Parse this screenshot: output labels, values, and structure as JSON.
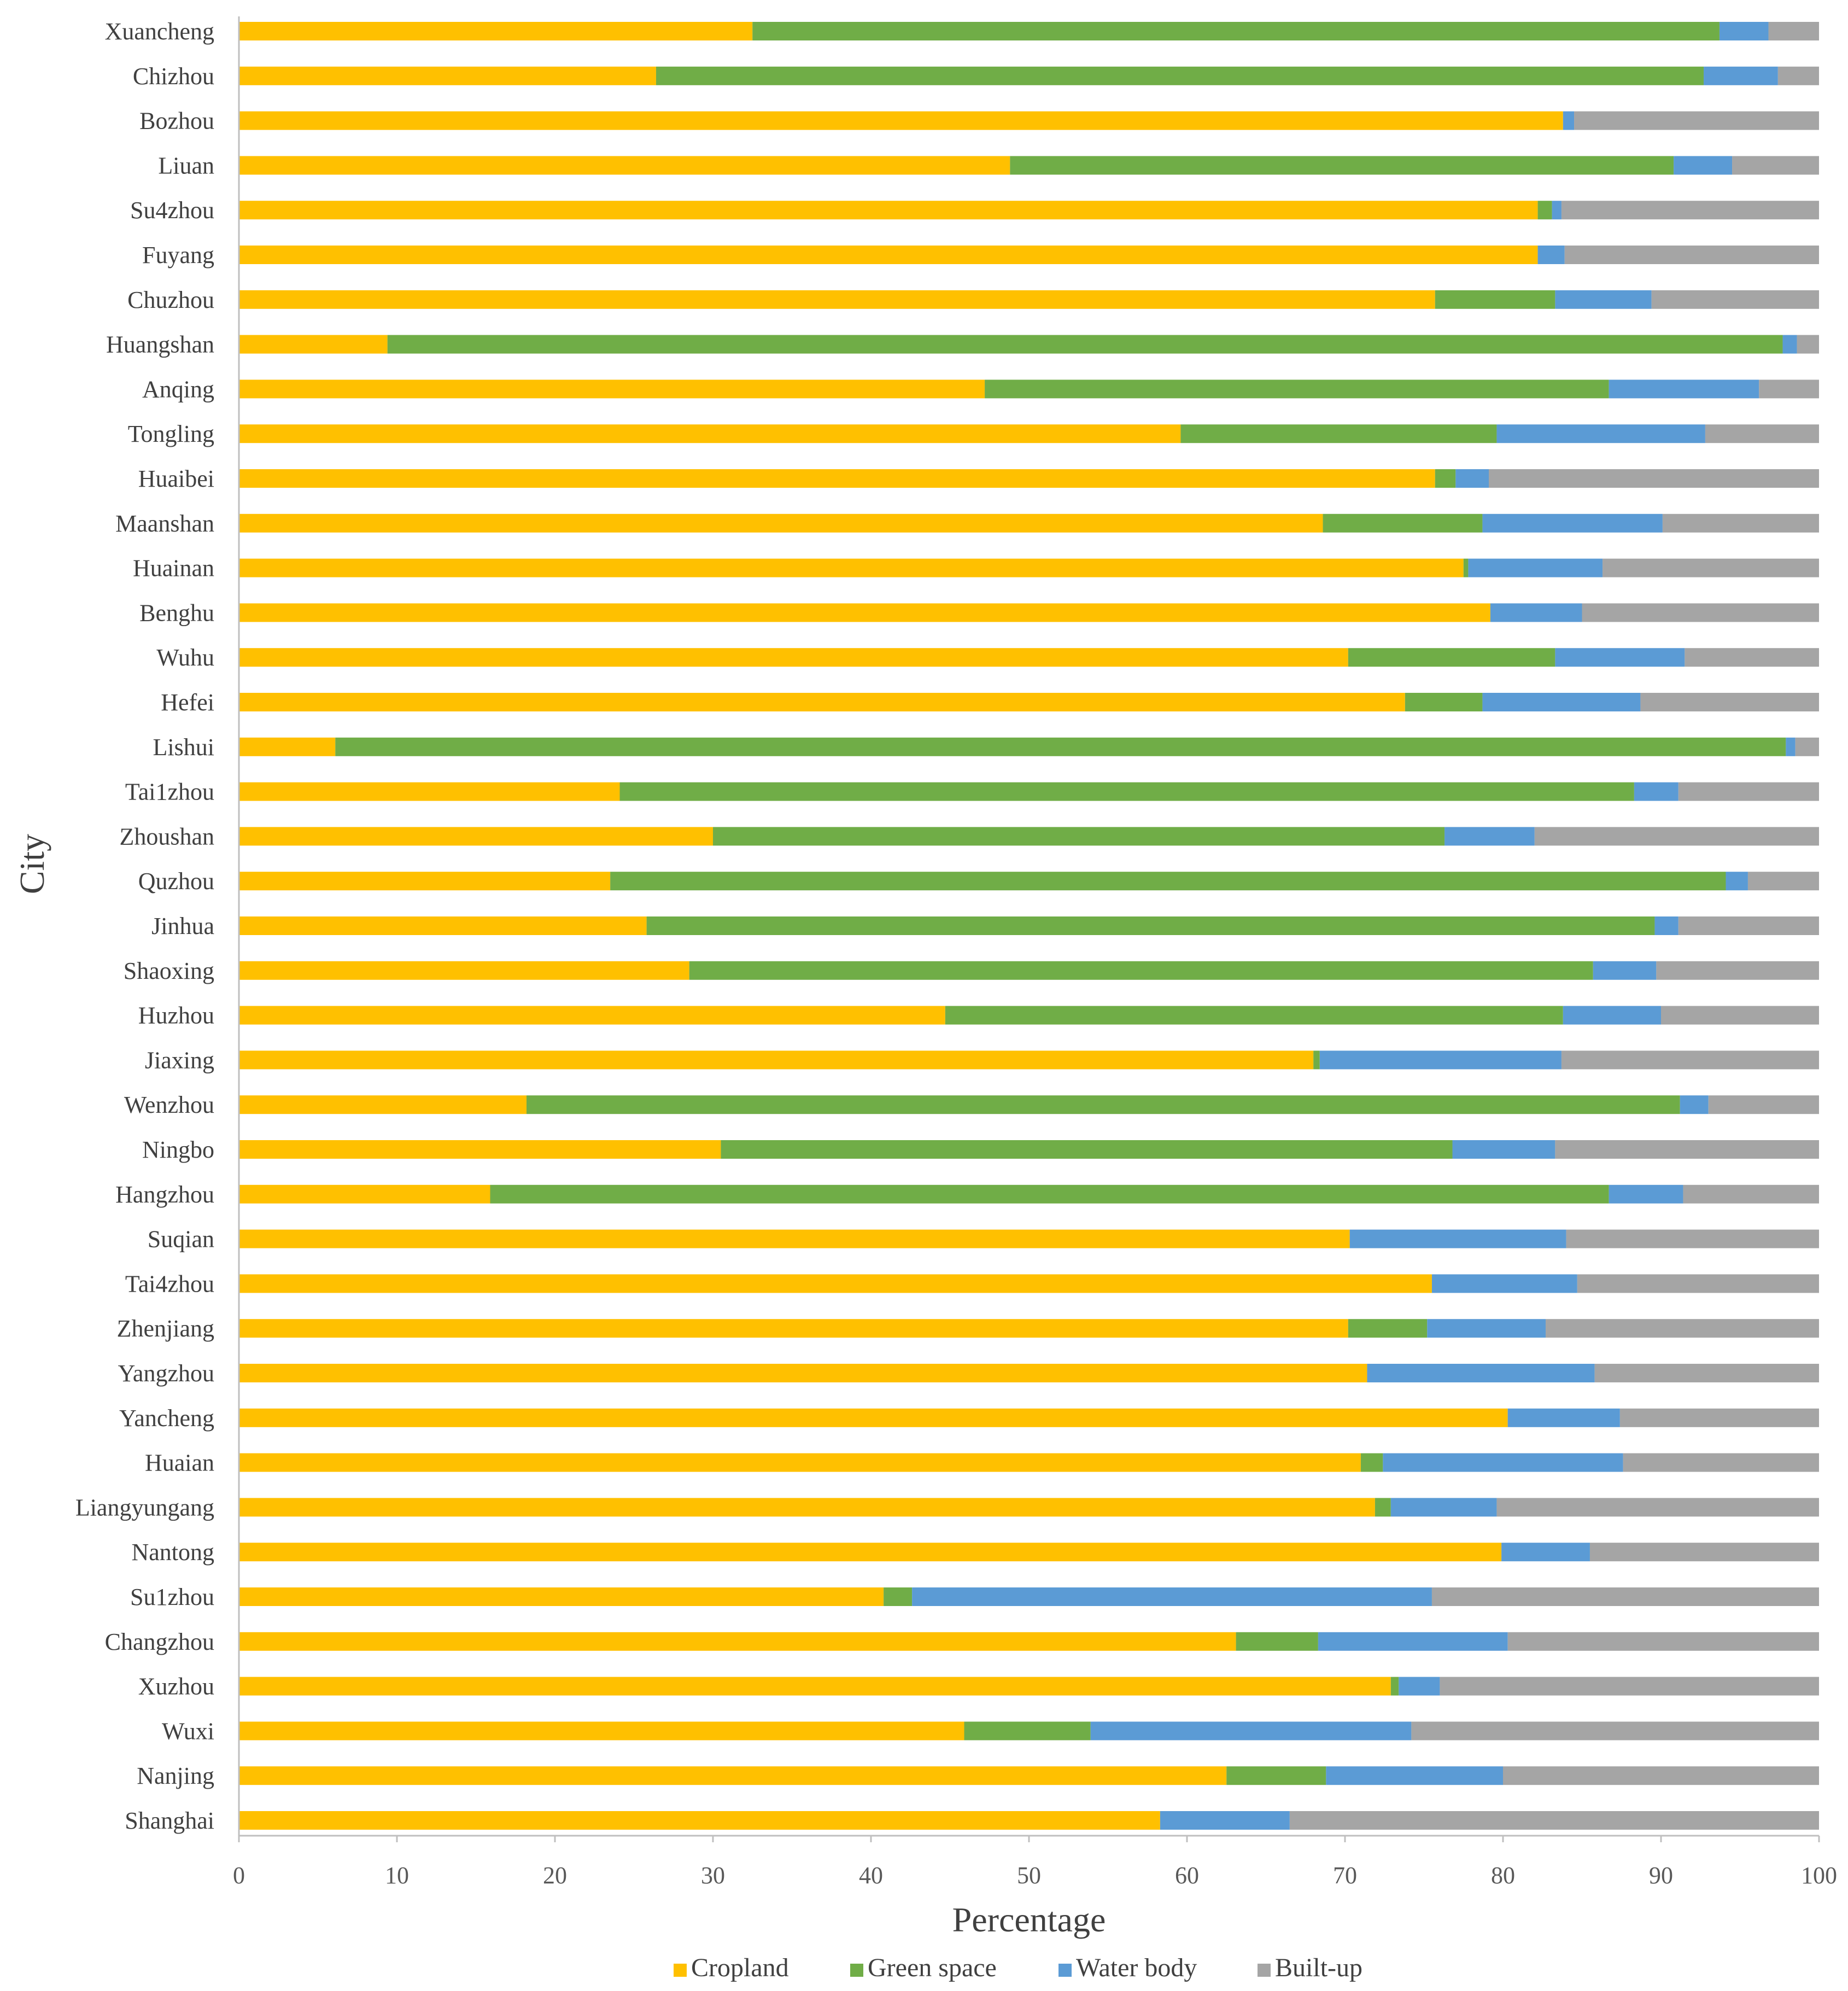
{
  "chart_data": {
    "type": "bar",
    "orientation": "horizontal",
    "stacked": true,
    "title": "",
    "xlabel": "Percentage",
    "ylabel": "City",
    "xlim": [
      0,
      100
    ],
    "x_ticks": [
      "0",
      "10",
      "20",
      "30",
      "40",
      "50",
      "60",
      "70",
      "80",
      "90",
      "100"
    ],
    "grid": false,
    "legend_position": "bottom",
    "categories": [
      "Xuancheng",
      "Chizhou",
      "Bozhou",
      "Liuan",
      "Su4zhou",
      "Fuyang",
      "Chuzhou",
      "Huangshan",
      "Anqing",
      "Tongling",
      "Huaibei",
      "Maanshan",
      "Huainan",
      "Benghu",
      "Wuhu",
      "Hefei",
      "Lishui",
      "Tai1zhou",
      "Zhoushan",
      "Quzhou",
      "Jinhua",
      "Shaoxing",
      "Huzhou",
      "Jiaxing",
      "Wenzhou",
      "Ningbo",
      "Hangzhou",
      "Suqian",
      "Tai4zhou",
      "Zhenjiang",
      "Yangzhou",
      "Yancheng",
      "Huaian",
      "Liangyungang",
      "Nantong",
      "Su1zhou",
      "Changzhou",
      "Xuzhou",
      "Wuxi",
      "Nanjing",
      "Shanghai"
    ],
    "series": [
      {
        "name": "Cropland",
        "color": "#FFC000",
        "values": [
          32.5,
          26.4,
          83.8,
          48.8,
          82.2,
          82.2,
          75.7,
          9.4,
          47.2,
          59.6,
          75.7,
          68.6,
          77.5,
          79.2,
          70.2,
          73.8,
          6.1,
          24.1,
          30.0,
          23.5,
          25.8,
          28.5,
          44.7,
          68.0,
          18.2,
          30.5,
          15.9,
          70.3,
          75.5,
          70.2,
          71.4,
          80.3,
          71.0,
          71.9,
          79.9,
          40.8,
          63.1,
          72.9,
          45.9,
          62.5,
          58.3
        ]
      },
      {
        "name": "Green space",
        "color": "#70AD47",
        "values": [
          61.2,
          66.3,
          0.0,
          42.0,
          0.9,
          0.0,
          7.6,
          88.3,
          39.5,
          20.0,
          1.3,
          10.1,
          0.3,
          0.0,
          13.1,
          4.9,
          91.8,
          64.2,
          46.3,
          70.6,
          63.8,
          57.2,
          39.1,
          0.4,
          73.0,
          46.3,
          70.8,
          0.0,
          0.0,
          5.0,
          0.0,
          0.0,
          1.4,
          1.0,
          0.0,
          1.8,
          5.2,
          0.5,
          8.0,
          6.3,
          0.0
        ]
      },
      {
        "name": "Water body",
        "color": "#5B9BD5",
        "values": [
          3.1,
          4.7,
          0.7,
          3.7,
          0.6,
          1.7,
          6.1,
          0.9,
          9.5,
          13.2,
          2.1,
          11.4,
          8.5,
          5.8,
          8.2,
          10.0,
          0.6,
          2.8,
          5.7,
          1.4,
          1.5,
          4.0,
          6.2,
          15.3,
          1.8,
          6.5,
          4.7,
          13.7,
          9.2,
          7.5,
          14.4,
          7.1,
          15.2,
          6.7,
          5.6,
          32.9,
          12.0,
          2.6,
          20.3,
          11.2,
          8.2
        ]
      },
      {
        "name": "Built-up",
        "color": "#A5A5A5",
        "values": [
          3.2,
          2.6,
          15.5,
          5.5,
          16.3,
          16.1,
          10.6,
          1.4,
          3.8,
          7.2,
          20.9,
          9.9,
          13.7,
          15.0,
          8.5,
          11.3,
          1.5,
          8.9,
          18.0,
          4.5,
          8.9,
          10.3,
          10.0,
          16.3,
          7.0,
          16.7,
          8.6,
          16.0,
          15.3,
          17.3,
          14.2,
          12.6,
          12.4,
          20.4,
          14.5,
          24.5,
          19.7,
          24.0,
          25.8,
          20.0,
          33.5
        ]
      }
    ]
  }
}
